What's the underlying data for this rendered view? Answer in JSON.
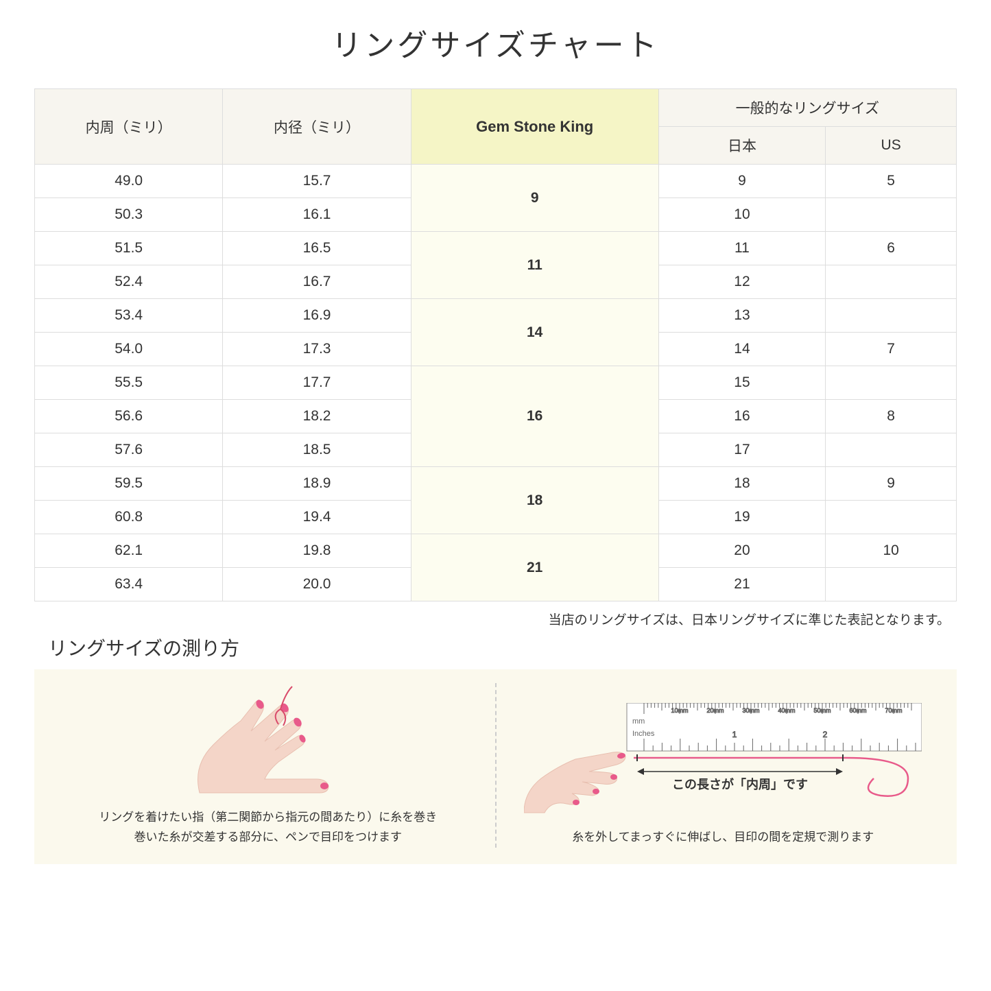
{
  "title": "リングサイズチャート",
  "headers": {
    "circumference": "内周（ミリ）",
    "diameter": "内径（ミリ）",
    "gsk": "Gem Stone King",
    "general": "一般的なリングサイズ",
    "japan": "日本",
    "us": "US"
  },
  "groups": [
    {
      "gsk": "9",
      "rows": [
        {
          "c": "49.0",
          "d": "15.7",
          "jp": "9",
          "us": "5"
        },
        {
          "c": "50.3",
          "d": "16.1",
          "jp": "10",
          "us": ""
        }
      ]
    },
    {
      "gsk": "11",
      "rows": [
        {
          "c": "51.5",
          "d": "16.5",
          "jp": "11",
          "us": "6"
        },
        {
          "c": "52.4",
          "d": "16.7",
          "jp": "12",
          "us": ""
        }
      ]
    },
    {
      "gsk": "14",
      "rows": [
        {
          "c": "53.4",
          "d": "16.9",
          "jp": "13",
          "us": ""
        },
        {
          "c": "54.0",
          "d": "17.3",
          "jp": "14",
          "us": "7"
        }
      ]
    },
    {
      "gsk": "16",
      "rows": [
        {
          "c": "55.5",
          "d": "17.7",
          "jp": "15",
          "us": ""
        },
        {
          "c": "56.6",
          "d": "18.2",
          "jp": "16",
          "us": "8"
        },
        {
          "c": "57.6",
          "d": "18.5",
          "jp": "17",
          "us": ""
        }
      ]
    },
    {
      "gsk": "18",
      "rows": [
        {
          "c": "59.5",
          "d": "18.9",
          "jp": "18",
          "us": "9"
        },
        {
          "c": "60.8",
          "d": "19.4",
          "jp": "19",
          "us": ""
        }
      ]
    },
    {
      "gsk": "21",
      "rows": [
        {
          "c": "62.1",
          "d": "19.8",
          "jp": "20",
          "us": "10"
        },
        {
          "c": "63.4",
          "d": "20.0",
          "jp": "21",
          "us": ""
        }
      ]
    }
  ],
  "note": "当店のリングサイズは、日本リングサイズに準じた表記となります。",
  "howto": {
    "title": "リングサイズの測り方",
    "left_caption": "リングを着けたい指（第二関節から指元の間あたり）に糸を巻き\n巻いた糸が交差する部分に、ペンで目印をつけます",
    "right_caption": "糸を外してまっすぐに伸ばし、目印の間を定規で測ります",
    "ruler_label": "この長さが「内周」です",
    "ruler_mm": "mm",
    "ruler_inches": "Inches",
    "ruler_ticks": [
      "10mm",
      "20mm",
      "30mm",
      "40mm",
      "50mm",
      "60mm",
      "70mm"
    ],
    "ruler_inch_marks": [
      "1",
      "2"
    ]
  },
  "colors": {
    "header_bg": "#f7f5ef",
    "gsk_header_bg": "#f5f5c6",
    "gsk_cell_bg": "#fdfdf0",
    "panel_bg": "#fbf9ed",
    "border": "#dddddd",
    "skin": "#f4d5c8",
    "skin_shadow": "#e8bfb0",
    "nail": "#e85a8a",
    "thread": "#d94a6a",
    "ruler_fill": "#ffffff",
    "ruler_stroke": "#888888"
  }
}
